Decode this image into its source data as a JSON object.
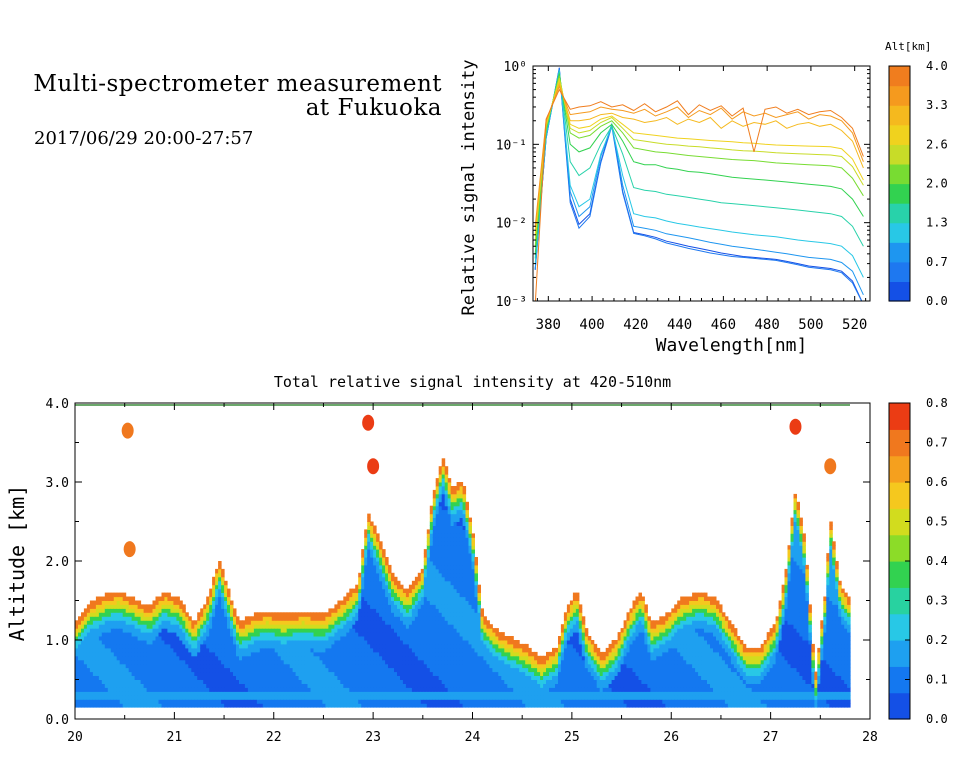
{
  "header": {
    "title_line1": "Multi-spectrometer measurement",
    "title_line2": "at Fukuoka",
    "date_range": "2017/06/29 20:00-27:57"
  },
  "chart_data": [
    {
      "type": "line",
      "title": "",
      "xlabel": "Wavelength[nm]",
      "ylabel": "Relative signal intensity",
      "yscale": "log",
      "xlim": [
        373,
        527
      ],
      "ylim": [
        0.001,
        1
      ],
      "xticks": [
        380,
        400,
        420,
        440,
        460,
        480,
        500,
        520
      ],
      "yticks": [
        {
          "value": 1,
          "label": "10⁰"
        },
        {
          "value": 0.1,
          "label": "10⁻¹"
        },
        {
          "value": 0.01,
          "label": "10⁻²"
        },
        {
          "value": 0.001,
          "label": "10⁻³"
        }
      ],
      "x": [
        374,
        379,
        385,
        390,
        394,
        399,
        404,
        409,
        414,
        419,
        424,
        429,
        434,
        439,
        444,
        449,
        454,
        459,
        464,
        469,
        474,
        479,
        484,
        489,
        494,
        499,
        504,
        509,
        514,
        519,
        524
      ],
      "colorbar": {
        "label": "Alt[km]",
        "ticks": [
          "0.0",
          "0.7",
          "1.3",
          "2.0",
          "2.6",
          "3.3",
          "4.0"
        ],
        "colors": [
          "#1450e6",
          "#1e78f0",
          "#1e96f0",
          "#28c8e6",
          "#28d2aa",
          "#32d250",
          "#78dc32",
          "#c8dc28",
          "#f0d21e",
          "#f5b91e",
          "#f59a1e",
          "#f07d1e"
        ]
      },
      "series": [
        {
          "color": "#1450e6",
          "values": [
            0.0025,
            0.12,
            0.95,
            0.02,
            0.0095,
            0.013,
            0.06,
            0.18,
            0.025,
            0.0075,
            0.007,
            0.0065,
            0.0058,
            0.0054,
            0.005,
            0.0047,
            0.0044,
            0.0041,
            0.0039,
            0.0037,
            0.0036,
            0.0035,
            0.0034,
            0.0032,
            0.003,
            0.0028,
            0.0027,
            0.0026,
            0.0024,
            0.0018,
            0.0009
          ]
        },
        {
          "color": "#1e78f0",
          "values": [
            0.0025,
            0.12,
            0.93,
            0.018,
            0.0085,
            0.012,
            0.058,
            0.17,
            0.024,
            0.0073,
            0.0068,
            0.0062,
            0.0055,
            0.0051,
            0.0047,
            0.0044,
            0.0041,
            0.0039,
            0.0037,
            0.0036,
            0.0035,
            0.0034,
            0.0033,
            0.0031,
            0.0029,
            0.0027,
            0.0026,
            0.0025,
            0.0023,
            0.0017,
            0.0009
          ]
        },
        {
          "color": "#1e96f0",
          "values": [
            0.0026,
            0.12,
            0.9,
            0.025,
            0.012,
            0.016,
            0.07,
            0.18,
            0.03,
            0.009,
            0.0085,
            0.008,
            0.0072,
            0.0068,
            0.0064,
            0.006,
            0.0056,
            0.0053,
            0.005,
            0.0048,
            0.0046,
            0.0044,
            0.0042,
            0.004,
            0.0038,
            0.0036,
            0.0035,
            0.0034,
            0.0031,
            0.0024,
            0.0012
          ]
        },
        {
          "color": "#28c8e6",
          "values": [
            0.003,
            0.13,
            0.88,
            0.03,
            0.016,
            0.02,
            0.075,
            0.17,
            0.04,
            0.013,
            0.012,
            0.0115,
            0.0105,
            0.0098,
            0.0093,
            0.0088,
            0.0084,
            0.008,
            0.0076,
            0.0073,
            0.007,
            0.0068,
            0.0066,
            0.0063,
            0.006,
            0.0058,
            0.0056,
            0.0054,
            0.005,
            0.0038,
            0.002
          ]
        },
        {
          "color": "#28d2aa",
          "values": [
            0.0035,
            0.14,
            0.85,
            0.06,
            0.04,
            0.05,
            0.1,
            0.17,
            0.075,
            0.028,
            0.026,
            0.025,
            0.023,
            0.022,
            0.021,
            0.02,
            0.019,
            0.018,
            0.0175,
            0.017,
            0.0165,
            0.016,
            0.0155,
            0.015,
            0.0145,
            0.014,
            0.0135,
            0.013,
            0.012,
            0.009,
            0.005
          ]
        },
        {
          "color": "#32d250",
          "values": [
            0.004,
            0.15,
            0.8,
            0.1,
            0.08,
            0.09,
            0.14,
            0.18,
            0.11,
            0.06,
            0.055,
            0.055,
            0.05,
            0.048,
            0.045,
            0.044,
            0.042,
            0.04,
            0.038,
            0.037,
            0.036,
            0.035,
            0.034,
            0.033,
            0.032,
            0.031,
            0.03,
            0.029,
            0.027,
            0.02,
            0.012
          ]
        },
        {
          "color": "#78dc32",
          "values": [
            0.005,
            0.16,
            0.75,
            0.14,
            0.12,
            0.13,
            0.17,
            0.2,
            0.14,
            0.09,
            0.085,
            0.08,
            0.078,
            0.075,
            0.072,
            0.07,
            0.068,
            0.066,
            0.064,
            0.063,
            0.062,
            0.06,
            0.058,
            0.057,
            0.056,
            0.055,
            0.054,
            0.053,
            0.05,
            0.037,
            0.022
          ]
        },
        {
          "color": "#c8dc28",
          "values": [
            0.006,
            0.17,
            0.7,
            0.16,
            0.14,
            0.15,
            0.19,
            0.22,
            0.16,
            0.115,
            0.11,
            0.105,
            0.1,
            0.098,
            0.095,
            0.093,
            0.09,
            0.088,
            0.085,
            0.083,
            0.082,
            0.08,
            0.078,
            0.077,
            0.076,
            0.075,
            0.074,
            0.073,
            0.07,
            0.052,
            0.03
          ]
        },
        {
          "color": "#f0d21e",
          "values": [
            0.007,
            0.18,
            0.65,
            0.18,
            0.16,
            0.17,
            0.21,
            0.23,
            0.18,
            0.14,
            0.135,
            0.13,
            0.125,
            0.12,
            0.118,
            0.115,
            0.112,
            0.11,
            0.108,
            0.105,
            0.103,
            0.1,
            0.098,
            0.097,
            0.096,
            0.095,
            0.094,
            0.093,
            0.088,
            0.065,
            0.035
          ]
        },
        {
          "color": "#f5b91e",
          "values": [
            0.008,
            0.19,
            0.6,
            0.2,
            0.2,
            0.21,
            0.24,
            0.25,
            0.22,
            0.21,
            0.19,
            0.2,
            0.22,
            0.18,
            0.21,
            0.19,
            0.22,
            0.16,
            0.2,
            0.17,
            0.19,
            0.18,
            0.2,
            0.16,
            0.18,
            0.19,
            0.17,
            0.18,
            0.15,
            0.11,
            0.05
          ]
        },
        {
          "color": "#f59a1e",
          "values": [
            0.009,
            0.2,
            0.55,
            0.24,
            0.25,
            0.26,
            0.3,
            0.28,
            0.27,
            0.25,
            0.28,
            0.23,
            0.26,
            0.3,
            0.22,
            0.27,
            0.24,
            0.29,
            0.21,
            0.26,
            0.23,
            0.25,
            0.22,
            0.24,
            0.26,
            0.21,
            0.24,
            0.23,
            0.2,
            0.14,
            0.06
          ]
        },
        {
          "color": "#f07d1e",
          "values": [
            0.0007,
            0.21,
            0.5,
            0.28,
            0.3,
            0.31,
            0.35,
            0.3,
            0.32,
            0.27,
            0.33,
            0.26,
            0.3,
            0.36,
            0.24,
            0.32,
            0.27,
            0.31,
            0.23,
            0.29,
            0.08,
            0.28,
            0.3,
            0.25,
            0.28,
            0.24,
            0.26,
            0.27,
            0.22,
            0.16,
            0.07
          ]
        }
      ]
    },
    {
      "type": "heatmap",
      "title": "Total relative signal intensity at 420-510nm",
      "xlabel": "",
      "ylabel": "Altitude [km]",
      "xlim": [
        20,
        28
      ],
      "ylim": [
        0,
        4
      ],
      "xticks": [
        "20",
        "21",
        "22",
        "23",
        "24",
        "25",
        "26",
        "27",
        "28"
      ],
      "yticks": [
        "0.0",
        "1.0",
        "2.0",
        "3.0",
        "4.0"
      ],
      "colorbar": {
        "range": [
          0,
          0.8
        ],
        "ticks": [
          "0.0",
          "0.1",
          "0.2",
          "0.3",
          "0.4",
          "0.5",
          "0.6",
          "0.7",
          "0.8"
        ],
        "colors": [
          "#1450e6",
          "#1478f0",
          "#1ea0f0",
          "#28c8e6",
          "#28d2a0",
          "#32d250",
          "#8cdc28",
          "#d2dc1e",
          "#f5c81e",
          "#f5a01e",
          "#f0781e",
          "#eb3c14"
        ]
      },
      "cloud_top_profile": {
        "time": [
          20.0,
          20.15,
          20.3,
          20.45,
          20.6,
          20.75,
          20.9,
          21.05,
          21.2,
          21.35,
          21.45,
          21.55,
          21.65,
          21.8,
          21.95,
          22.1,
          22.3,
          22.5,
          22.7,
          22.85,
          22.95,
          23.05,
          23.2,
          23.35,
          23.5,
          23.6,
          23.7,
          23.8,
          23.9,
          24.0,
          24.1,
          24.25,
          24.4,
          24.55,
          24.7,
          24.85,
          24.95,
          25.05,
          25.15,
          25.3,
          25.45,
          25.6,
          25.7,
          25.8,
          25.95,
          26.1,
          26.3,
          26.45,
          26.6,
          26.75,
          26.9,
          27.05,
          27.15,
          27.25,
          27.35,
          27.45,
          27.55,
          27.6,
          27.7,
          27.8
        ],
        "altitude": [
          1.2,
          1.45,
          1.55,
          1.6,
          1.5,
          1.4,
          1.6,
          1.5,
          1.2,
          1.55,
          2.0,
          1.6,
          1.2,
          1.3,
          1.35,
          1.3,
          1.35,
          1.3,
          1.5,
          1.7,
          2.6,
          2.3,
          1.8,
          1.6,
          1.9,
          2.8,
          3.3,
          2.9,
          3.0,
          2.4,
          1.3,
          1.1,
          1.0,
          0.9,
          0.75,
          0.9,
          1.4,
          1.6,
          1.1,
          0.8,
          1.0,
          1.4,
          1.6,
          1.2,
          1.3,
          1.5,
          1.6,
          1.5,
          1.2,
          0.9,
          0.9,
          1.2,
          1.8,
          2.9,
          2.2,
          0.5,
          1.6,
          2.5,
          1.7,
          1.5
        ]
      },
      "isolated_patches": [
        {
          "time": 20.53,
          "altitude": 3.65,
          "value": 0.7
        },
        {
          "time": 20.55,
          "altitude": 2.15,
          "value": 0.7
        },
        {
          "time": 22.95,
          "altitude": 3.75,
          "value": 0.8
        },
        {
          "time": 23.0,
          "altitude": 3.2,
          "value": 0.75
        },
        {
          "time": 27.25,
          "altitude": 3.7,
          "value": 0.8
        },
        {
          "time": 27.6,
          "altitude": 3.2,
          "value": 0.7
        }
      ]
    }
  ]
}
